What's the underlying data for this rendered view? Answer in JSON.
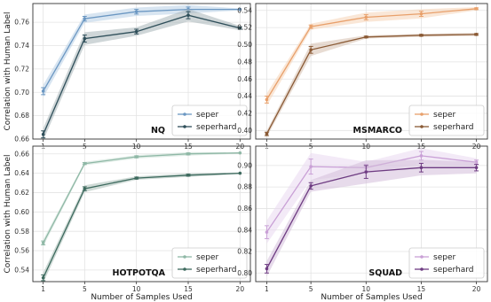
{
  "chart_data": [
    {
      "type": "line",
      "title": "NQ",
      "x": [
        1,
        5,
        10,
        15,
        20
      ],
      "ylim": [
        0.66,
        0.776
      ],
      "yticks": [
        0.66,
        0.68,
        0.7,
        0.72,
        0.74,
        0.76
      ],
      "ylabel": "Correlation with Human Label",
      "xlabel": "",
      "grid": true,
      "legend_position": "bottom-right",
      "series": [
        {
          "name": "seper",
          "color": "#6b97c2",
          "band_color": "#b8cfe6",
          "values": [
            0.701,
            0.763,
            0.769,
            0.771,
            0.771
          ],
          "err": [
            0.003,
            0.002,
            0.002,
            0.002,
            0.0
          ]
        },
        {
          "name": "seperhard",
          "color": "#2f4f5a",
          "band_color": "#a7b4b8",
          "values": [
            0.664,
            0.746,
            0.752,
            0.766,
            0.755
          ],
          "err": [
            0.003,
            0.003,
            0.002,
            0.003,
            0.001
          ]
        }
      ]
    },
    {
      "type": "line",
      "title": "MSMARCO",
      "x": [
        1,
        5,
        10,
        15,
        20
      ],
      "ylim": [
        0.39,
        0.548
      ],
      "yticks": [
        0.4,
        0.42,
        0.44,
        0.46,
        0.48,
        0.5,
        0.52,
        0.54
      ],
      "ylabel": "",
      "xlabel": "",
      "grid": true,
      "legend_position": "bottom-right",
      "series": [
        {
          "name": "seper",
          "color": "#e8a06b",
          "band_color": "#f6d3b6",
          "values": [
            0.436,
            0.521,
            0.532,
            0.536,
            0.542
          ],
          "err": [
            0.004,
            0.002,
            0.003,
            0.003,
            0.001
          ]
        },
        {
          "name": "seperhard",
          "color": "#8a5a35",
          "band_color": "#d5bfae",
          "values": [
            0.396,
            0.494,
            0.509,
            0.511,
            0.512
          ],
          "err": [
            0.002,
            0.004,
            0.001,
            0.001,
            0.001
          ]
        }
      ]
    },
    {
      "type": "line",
      "title": "HOTPOTQA",
      "x": [
        1,
        5,
        10,
        15,
        20
      ],
      "ylim": [
        0.528,
        0.668
      ],
      "yticks": [
        0.54,
        0.56,
        0.58,
        0.6,
        0.62,
        0.64,
        0.66
      ],
      "ylabel": "Correlation with Human Label",
      "xlabel": "Number of Samples Used",
      "grid": true,
      "legend_position": "bottom-right",
      "series": [
        {
          "name": "seper",
          "color": "#8fb8a6",
          "band_color": "#c9ded4",
          "values": [
            0.568,
            0.65,
            0.657,
            0.66,
            0.661
          ],
          "err": [
            0.002,
            0.001,
            0.001,
            0.001,
            0.0
          ]
        },
        {
          "name": "seperhard",
          "color": "#3d6a5e",
          "band_color": "#a9bdb6",
          "values": [
            0.532,
            0.624,
            0.635,
            0.638,
            0.64
          ],
          "err": [
            0.003,
            0.002,
            0.001,
            0.001,
            0.0
          ]
        }
      ]
    },
    {
      "type": "line",
      "title": "SQUAD",
      "x": [
        1,
        5,
        10,
        15,
        20
      ],
      "ylim": [
        0.792,
        0.918
      ],
      "yticks": [
        0.8,
        0.82,
        0.84,
        0.86,
        0.88,
        0.9
      ],
      "ylabel": "",
      "xlabel": "Number of Samples Used",
      "grid": true,
      "legend_position": "bottom-right",
      "series": [
        {
          "name": "seper",
          "color": "#c9a0d6",
          "band_color": "#ead8f0",
          "values": [
            0.838,
            0.899,
            0.898,
            0.909,
            0.903
          ],
          "err": [
            0.006,
            0.007,
            0.003,
            0.004,
            0.002
          ]
        },
        {
          "name": "seperhard",
          "color": "#6e3c82",
          "band_color": "#d3bedb",
          "values": [
            0.804,
            0.881,
            0.894,
            0.898,
            0.898
          ],
          "err": [
            0.004,
            0.003,
            0.006,
            0.004,
            0.003
          ]
        }
      ]
    }
  ]
}
